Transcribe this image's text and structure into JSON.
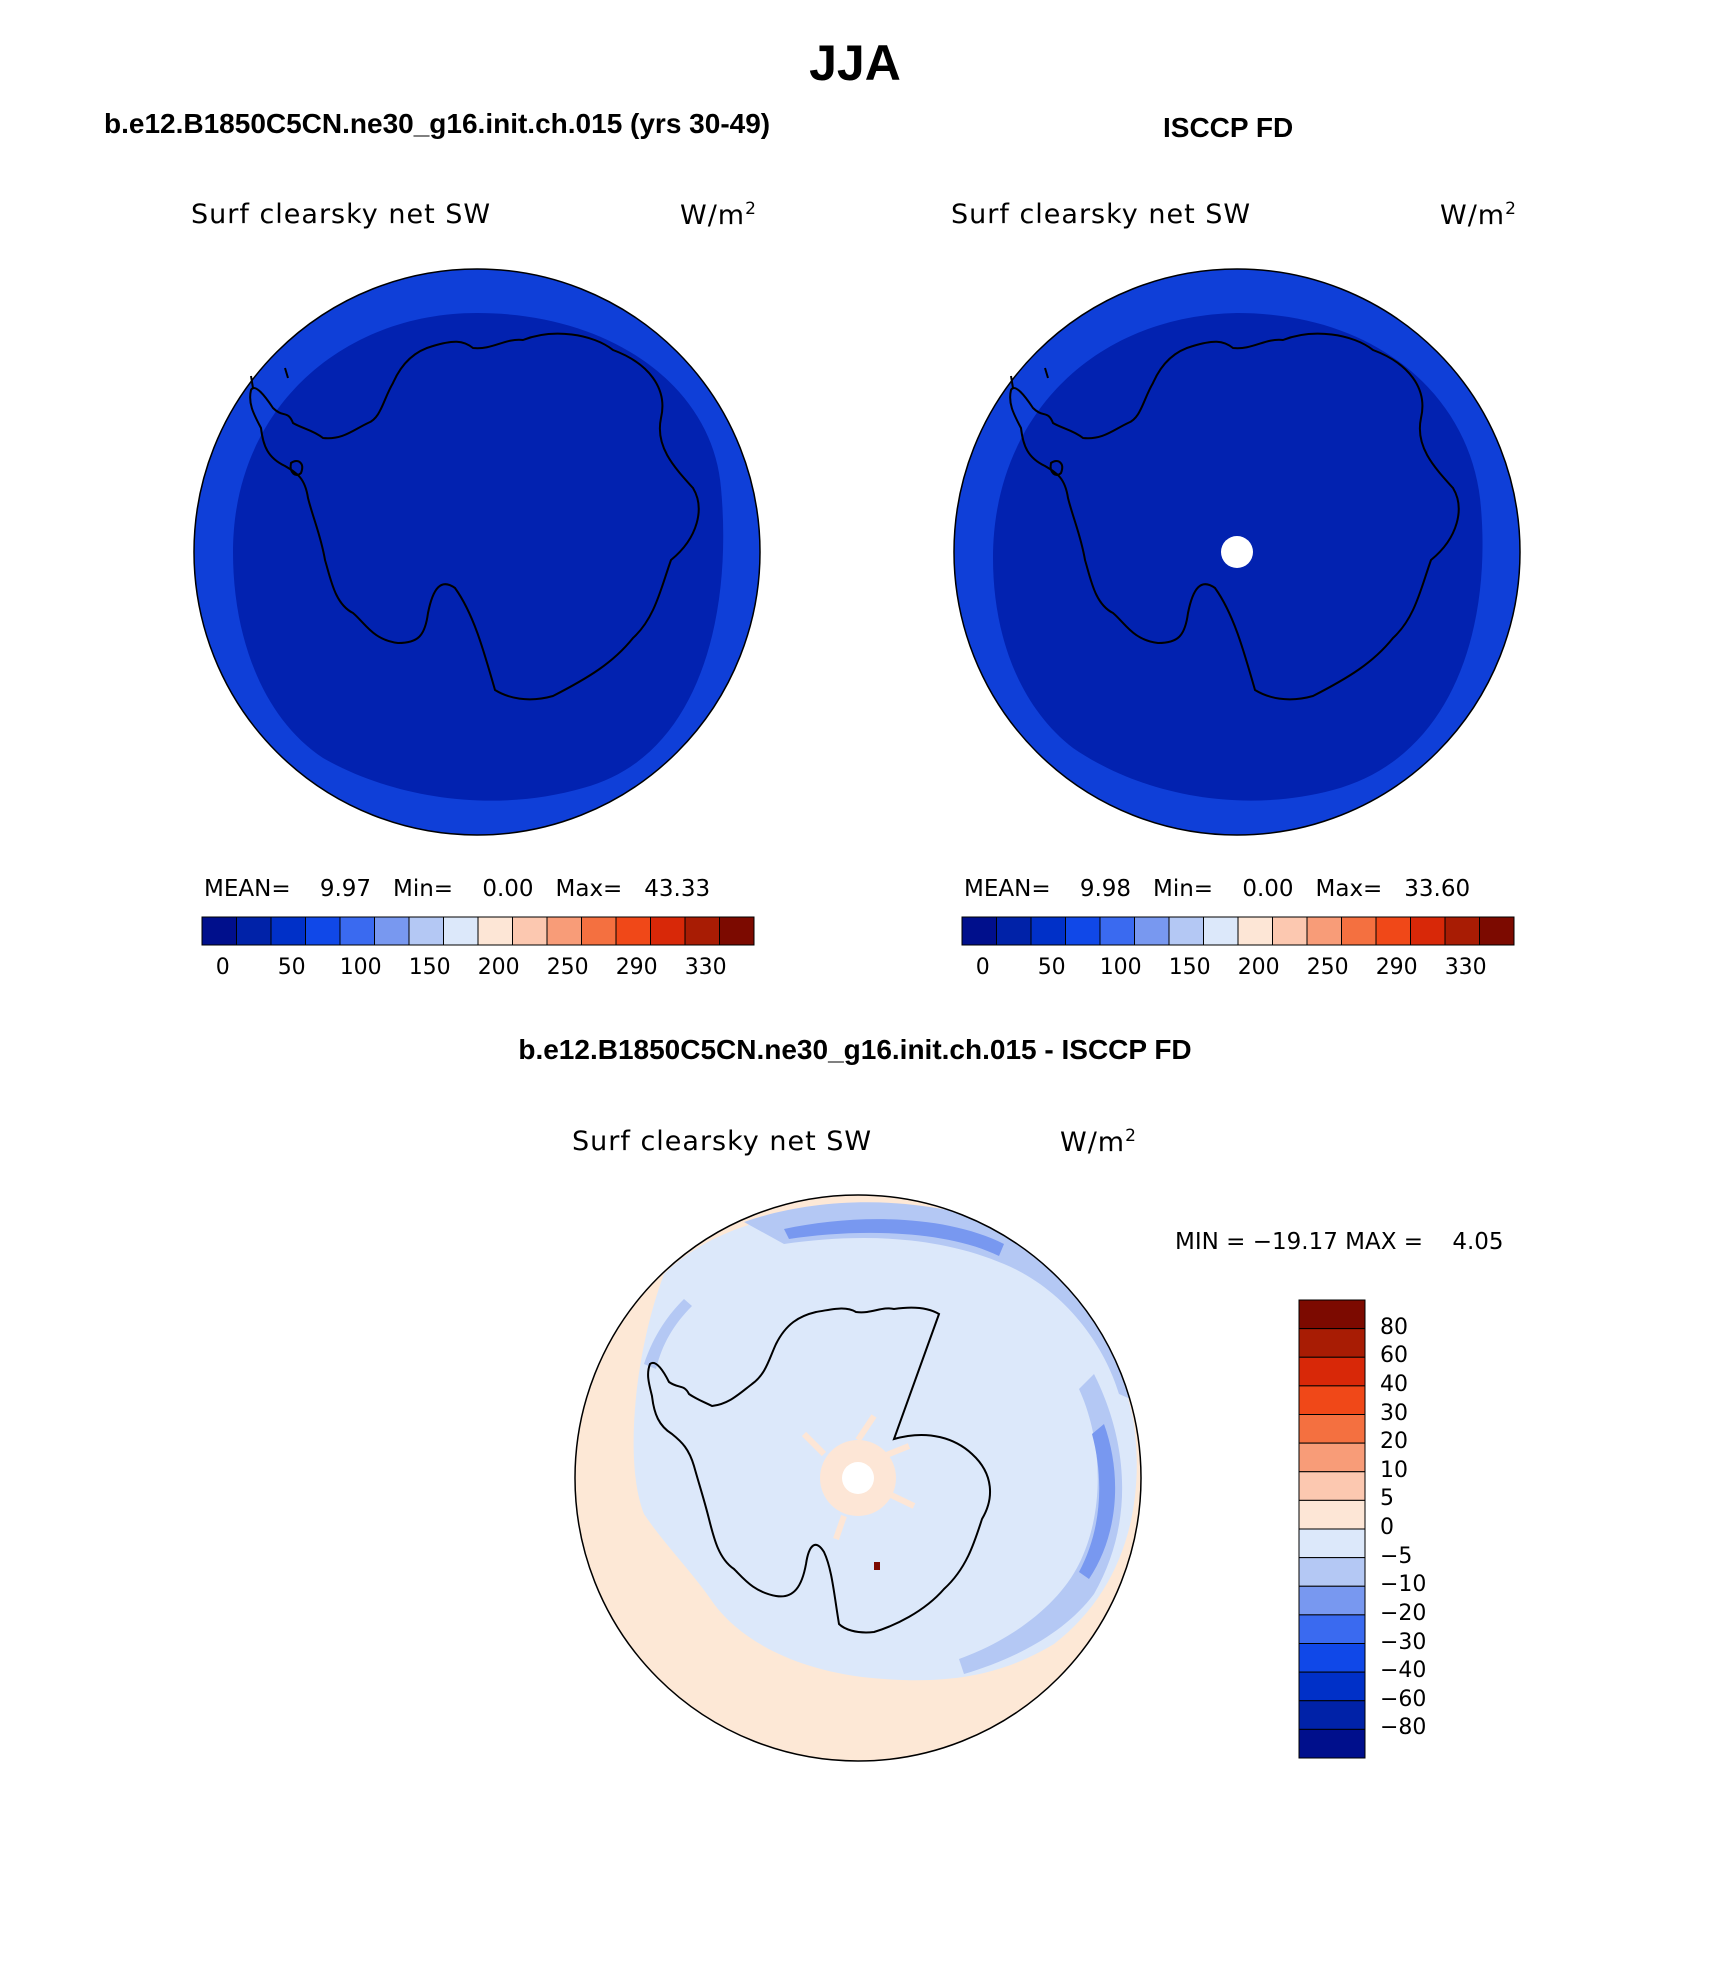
{
  "title": "JJA",
  "panels": [
    {
      "case_title": "b.e12.B1850C5CN.ne30_g16.init.ch.015 (yrs 30-49)",
      "variable": "Surf clearsky net SW",
      "units": "W/m",
      "units_sup": "2",
      "stats": {
        "mean_label": "MEAN=",
        "mean": "9.97",
        "min_label": "Min=",
        "min": "0.00",
        "max_label": "Max=",
        "max": "43.33"
      }
    },
    {
      "case_title": "ISCCP FD",
      "variable": "Surf clearsky net SW",
      "units": "W/m",
      "units_sup": "2",
      "stats": {
        "mean_label": "MEAN=",
        "mean": "9.98",
        "min_label": "Min=",
        "min": "0.00",
        "max_label": "Max=",
        "max": "33.60"
      }
    }
  ],
  "colorbar_top": {
    "colors": [
      "#000f8c",
      "#0022a8",
      "#0030c8",
      "#1048e8",
      "#3a6af0",
      "#7898f0",
      "#b4c8f4",
      "#dce8fa",
      "#fde6d6",
      "#fcc8b0",
      "#f89c78",
      "#f47040",
      "#f04818",
      "#d82808",
      "#a81c04",
      "#7c0a00"
    ],
    "ticks": [
      "0",
      "50",
      "100",
      "150",
      "200",
      "250",
      "290",
      "330"
    ]
  },
  "diff_panel": {
    "case_title": "b.e12.B1850C5CN.ne30_g16.init.ch.015 - ISCCP FD",
    "variable": "Surf clearsky net SW",
    "units": "W/m",
    "units_sup": "2",
    "minmax": "MIN = −19.17 MAX =    4.05",
    "colorbar": {
      "colors": [
        "#7c0a00",
        "#a81c04",
        "#d82808",
        "#f04818",
        "#f47040",
        "#f89c78",
        "#fcc8b0",
        "#fde6d6",
        "#dce8fa",
        "#b4c8f4",
        "#7898f0",
        "#3a6af0",
        "#1048e8",
        "#0030c8",
        "#0022a8",
        "#000f8c"
      ],
      "ticks": [
        "80",
        "60",
        "40",
        "30",
        "20",
        "10",
        "5",
        "0",
        "−5",
        "−10",
        "−20",
        "−30",
        "−40",
        "−60",
        "−80"
      ]
    }
  }
}
